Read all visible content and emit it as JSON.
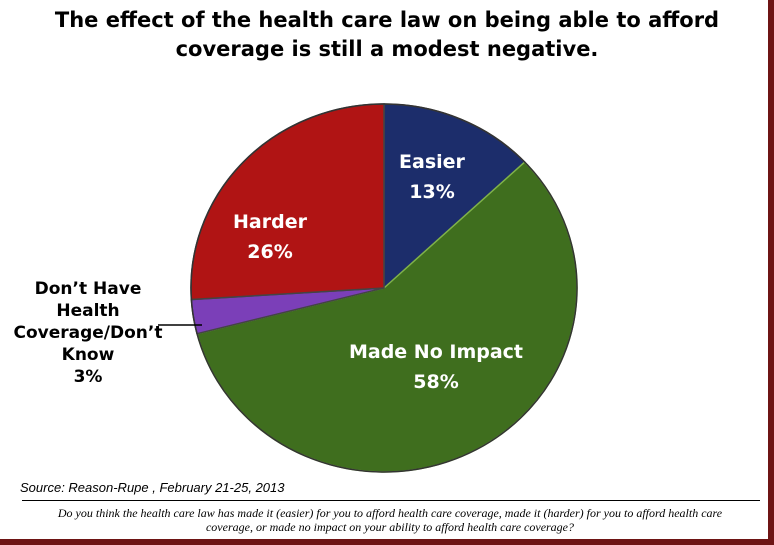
{
  "chart_data": {
    "type": "pie",
    "title": "The effect of the health care law on being able to afford coverage is still a modest negative.",
    "slices": [
      {
        "label": "Easier",
        "value": 13,
        "value_label": "13%",
        "color": "#1c2d6b"
      },
      {
        "label": "Made No Impact",
        "value": 58,
        "value_label": "58%",
        "color": "#3f6e1e"
      },
      {
        "label": "Don’t Have Health Coverage/Don’t Know",
        "value": 3,
        "value_label": "3%",
        "color": "#7b3fb8"
      },
      {
        "label": "Harder",
        "value": 26,
        "value_label": "26%",
        "color": "#b01414"
      }
    ],
    "start_angle": "12 o'clock",
    "direction": "clockwise"
  },
  "source": "Source: Reason-Rupe , February 21-25, 2013",
  "question": "Do you think the health care law has made it (easier) for you to afford health care coverage, made it (harder) for you to afford health care coverage, or made no impact on your ability to afford health care coverage?"
}
